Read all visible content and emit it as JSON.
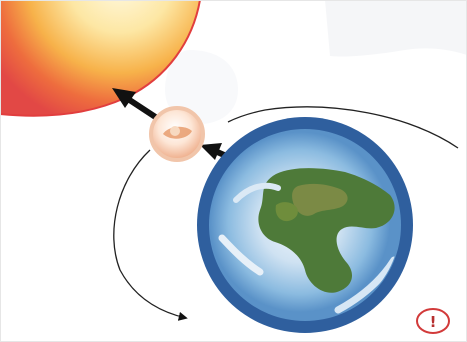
{
  "diagram": {
    "background": "#ffffff",
    "colors": {
      "sun_outer": "#e84a45",
      "sun_mid": "#f59a3c",
      "sun_inner": "#fff6c8",
      "arrow": "#111111",
      "orbit_line": "#2b2b2b",
      "moon_rim": "#f2c3a4",
      "moon_face": "#f3b08a",
      "earth_ring": "#2f5f9e",
      "earth_ocean": "#7fb3d8",
      "earth_land": "#4f7a3a",
      "badge_stroke": "#d23a3a",
      "watermark": "#eef0f3"
    },
    "icons": {
      "sun": "sun-icon",
      "moon": "moon-icon",
      "earth": "earth-icon",
      "badge": "warning-badge-icon"
    },
    "badge_symbol": "!"
  }
}
